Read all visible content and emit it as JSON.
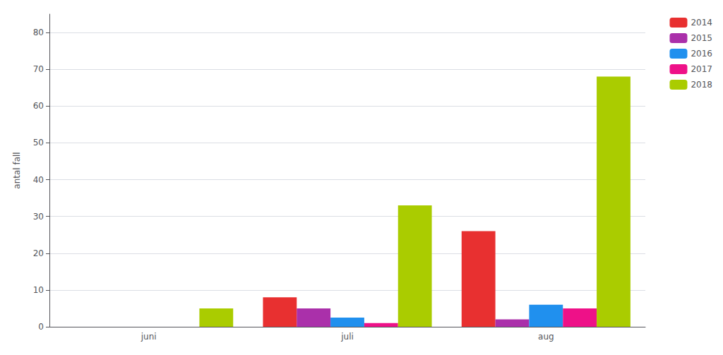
{
  "chart_data": {
    "type": "bar",
    "categories": [
      "juni",
      "juli",
      "aug"
    ],
    "series": [
      {
        "name": "2014",
        "color": "#e83030",
        "values": [
          0,
          8,
          26
        ]
      },
      {
        "name": "2015",
        "color": "#aa30aa",
        "values": [
          0,
          5,
          2
        ]
      },
      {
        "name": "2016",
        "color": "#2090ee",
        "values": [
          0,
          2.5,
          6
        ]
      },
      {
        "name": "2017",
        "color": "#ee1188",
        "values": [
          0,
          1,
          5
        ]
      },
      {
        "name": "2018",
        "color": "#aacc00",
        "values": [
          5,
          33,
          68
        ]
      }
    ],
    "ylabel": "antal fall",
    "ylim": [
      0,
      85
    ],
    "yticks": [
      0,
      10,
      20,
      30,
      40,
      50,
      60,
      70,
      80
    ],
    "grid": true,
    "legend": "upper right"
  }
}
